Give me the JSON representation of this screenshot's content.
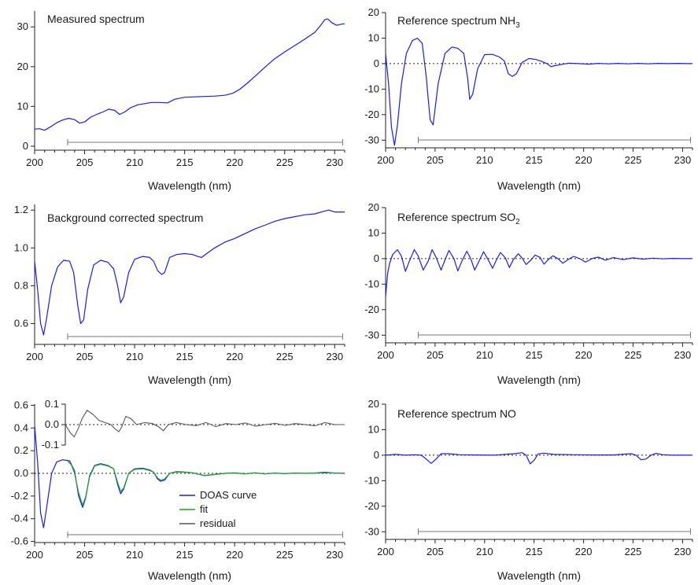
{
  "colors": {
    "doas": "#1a1aff",
    "fit": "#1aa81a",
    "residual": "#555555",
    "bracket": "#777777",
    "zero_line": "#222222",
    "axis": "#222222"
  },
  "chart_data": [
    {
      "id": "measured",
      "type": "line",
      "title": "Measured spectrum",
      "xlabel": "Wavelength (nm)",
      "xlim": [
        200,
        231
      ],
      "ylim": [
        -1,
        34
      ],
      "xticks": [
        "200",
        "205",
        "210",
        "215",
        "220",
        "225",
        "230"
      ],
      "yticks": [
        "0",
        "10",
        "20",
        "30"
      ],
      "zero_line": false,
      "fit_window": [
        203.3,
        230.8
      ],
      "series": [
        {
          "color": "doas",
          "x": [
            200,
            200.5,
            201,
            201.6,
            202.2,
            202.8,
            203.4,
            204,
            204.5,
            205,
            205.6,
            206.2,
            206.8,
            207.4,
            208,
            208.5,
            209,
            209.6,
            210.3,
            211,
            211.7,
            212.5,
            213.3,
            214,
            215,
            216,
            217,
            218,
            219,
            219.8,
            220.5,
            221.2,
            222,
            223,
            224,
            225,
            226,
            227,
            228,
            228.6,
            229,
            229.3,
            229.7,
            230.2,
            230.7,
            231
          ],
          "y": [
            4.3,
            4.4,
            4.0,
            4.9,
            5.9,
            6.6,
            7.0,
            6.7,
            5.8,
            6.1,
            7.3,
            8.0,
            8.6,
            9.3,
            9.0,
            8.0,
            8.6,
            9.7,
            10.4,
            10.7,
            11.0,
            11.0,
            10.9,
            11.8,
            12.3,
            12.4,
            12.5,
            12.6,
            12.8,
            13.3,
            14.3,
            15.7,
            17.5,
            19.8,
            22.0,
            23.7,
            25.3,
            26.9,
            28.6,
            30.4,
            31.8,
            32.0,
            31.1,
            30.4,
            30.7,
            30.8
          ]
        }
      ]
    },
    {
      "id": "nh3",
      "type": "line",
      "title": "Reference spectrum NH",
      "title_sub": "3",
      "xlabel": "Wavelength (nm)",
      "xlim": [
        200,
        231
      ],
      "ylim": [
        -33,
        20
      ],
      "xticks": [
        "200",
        "205",
        "210",
        "215",
        "220",
        "225",
        "230"
      ],
      "yticks": [
        "-30",
        "-20",
        "-10",
        "0",
        "10",
        "20"
      ],
      "zero_line": true,
      "fit_window": [
        203.3,
        230.8
      ],
      "series": [
        {
          "color": "doas",
          "x": [
            200,
            200.3,
            200.6,
            200.9,
            201.2,
            201.6,
            202.1,
            202.7,
            203.2,
            203.7,
            204.1,
            204.5,
            204.8,
            205.3,
            206,
            206.7,
            207.3,
            207.9,
            208.3,
            208.5,
            208.8,
            209.3,
            210,
            210.8,
            211.5,
            212,
            212.4,
            212.8,
            213.2,
            213.8,
            214.5,
            215.2,
            215.8,
            216.3,
            216.7,
            217.1,
            217.7,
            218.5,
            219.5,
            220.5,
            221.5,
            222.5,
            223.5,
            224.5,
            225.5,
            226.5,
            227.5,
            228.5,
            229.5,
            230.5,
            231
          ],
          "y": [
            4,
            -8,
            -25,
            -32,
            -24,
            -8,
            4,
            9,
            10,
            8,
            -5,
            -22,
            -24,
            -8,
            4,
            6.5,
            6,
            4,
            -6,
            -14,
            -12,
            -2,
            3.5,
            3.6,
            2.6,
            1,
            -4,
            -5,
            -4,
            0.5,
            2,
            1.6,
            0.8,
            0,
            -1.2,
            -0.8,
            -0.4,
            0.2,
            0,
            -0.2,
            0.1,
            -0.1,
            0.1,
            -0.1,
            0.1,
            -0.1,
            0.1,
            0,
            0.1,
            0,
            0
          ]
        }
      ]
    },
    {
      "id": "bgcorr",
      "type": "line",
      "title": "Background corrected spectrum",
      "xlabel": "Wavelength (nm)",
      "xlim": [
        200,
        231
      ],
      "ylim": [
        0.49,
        1.23
      ],
      "xticks": [
        "200",
        "205",
        "210",
        "215",
        "220",
        "225",
        "230"
      ],
      "yticks": [
        "0.6",
        "0.8",
        "1.0",
        "1.2"
      ],
      "zero_line": false,
      "fit_window": [
        203.3,
        230.8
      ],
      "series": [
        {
          "color": "doas",
          "x": [
            200,
            200.3,
            200.6,
            200.9,
            201.2,
            201.7,
            202.3,
            202.9,
            203.5,
            203.9,
            204.3,
            204.6,
            204.9,
            205.3,
            205.9,
            206.6,
            207.3,
            207.9,
            208.3,
            208.6,
            208.9,
            209.4,
            210,
            210.8,
            211.5,
            211.9,
            212.3,
            212.7,
            213,
            213.5,
            214.2,
            215,
            215.8,
            216.3,
            216.7,
            217.2,
            218,
            219,
            220,
            221,
            222,
            223,
            224,
            225,
            226,
            227,
            228,
            229,
            229.4,
            230,
            231
          ],
          "y": [
            0.93,
            0.78,
            0.6,
            0.54,
            0.63,
            0.8,
            0.9,
            0.935,
            0.93,
            0.87,
            0.7,
            0.6,
            0.62,
            0.78,
            0.91,
            0.935,
            0.925,
            0.89,
            0.8,
            0.71,
            0.74,
            0.87,
            0.94,
            0.955,
            0.95,
            0.93,
            0.88,
            0.86,
            0.87,
            0.95,
            0.965,
            0.97,
            0.965,
            0.955,
            0.95,
            0.97,
            1.0,
            1.03,
            1.05,
            1.075,
            1.1,
            1.12,
            1.14,
            1.155,
            1.165,
            1.175,
            1.18,
            1.195,
            1.2,
            1.19,
            1.19
          ]
        }
      ]
    },
    {
      "id": "so2",
      "type": "line",
      "title": "Reference spectrum SO",
      "title_sub": "2",
      "xlabel": "Wavelength (nm)",
      "xlim": [
        200,
        231
      ],
      "ylim": [
        -33,
        20
      ],
      "xticks": [
        "200",
        "205",
        "210",
        "215",
        "220",
        "225",
        "230"
      ],
      "yticks": [
        "-30",
        "-20",
        "-10",
        "0",
        "10",
        "20"
      ],
      "zero_line": true,
      "fit_window": [
        203.3,
        230.8
      ],
      "series": [
        {
          "color": "doas",
          "x": [
            200,
            200.2,
            200.4,
            200.7,
            201.2,
            201.6,
            202,
            202.4,
            202.9,
            203.3,
            203.8,
            204.3,
            204.7,
            205.1,
            205.6,
            206,
            206.4,
            206.9,
            207.3,
            207.7,
            208.2,
            208.6,
            209,
            209.5,
            209.9,
            210.3,
            210.8,
            211.2,
            211.6,
            212.1,
            212.5,
            212.9,
            213.4,
            213.8,
            214.2,
            214.7,
            215.1,
            215.6,
            216,
            216.4,
            216.9,
            217.4,
            217.9,
            218.5,
            219,
            219.6,
            220.2,
            220.9,
            221.5,
            222.2,
            223,
            224,
            225,
            226,
            227,
            228,
            229,
            230,
            231
          ],
          "y": [
            -15,
            -6,
            -2,
            1.5,
            3.5,
            1,
            -5,
            -1,
            3.5,
            1,
            -4.5,
            -1,
            3.5,
            0.5,
            -4.5,
            -0.5,
            3.2,
            0,
            -4.8,
            -1,
            2.9,
            0,
            -4.5,
            -0.5,
            2.7,
            0,
            -3.8,
            -0.5,
            2.4,
            0.3,
            -3.5,
            -0.4,
            1.9,
            0.2,
            -2.3,
            -0.5,
            1.4,
            0.5,
            -2.2,
            -0.5,
            1.1,
            0,
            -1.8,
            -0.2,
            0.9,
            0,
            -1.4,
            0.1,
            0.6,
            -0.6,
            0.4,
            -0.4,
            0.3,
            -0.2,
            0.2,
            -0.1,
            0.1,
            0,
            0
          ]
        }
      ]
    },
    {
      "id": "fit",
      "type": "line",
      "xlabel": "Wavelength (nm)",
      "xlim": [
        200,
        231
      ],
      "ylim": [
        -0.61,
        0.61
      ],
      "xticks": [
        "200",
        "205",
        "210",
        "215",
        "220",
        "225",
        "230"
      ],
      "yticks": [
        "-0.6",
        "-0.4",
        "-0.2",
        "0.0",
        "0.2",
        "0.4",
        "0.6"
      ],
      "zero_line": true,
      "fit_window": [
        203.3,
        230.8
      ],
      "legend": {
        "position": "lower-center",
        "items": [
          {
            "label": "DOAS curve",
            "color": "doas"
          },
          {
            "label": "fit",
            "color": "fit"
          },
          {
            "label": "residual",
            "color": "residual"
          }
        ]
      },
      "inset": {
        "xlim": [
          202.8,
          231
        ],
        "ylim": [
          -0.1,
          0.1
        ],
        "yticks": [
          "0.1",
          "0.0",
          "-0.1"
        ],
        "series": [
          {
            "name": "residual",
            "color": "residual",
            "x": [
              202.8,
              203.3,
              203.7,
              204.1,
              204.5,
              205,
              205.6,
              206.2,
              206.8,
              207.4,
              207.8,
              208.2,
              208.5,
              208.9,
              209.4,
              210,
              210.8,
              211.6,
              212.2,
              212.7,
              213.2,
              214,
              215,
              216,
              217,
              218,
              219,
              220,
              221,
              222,
              223,
              224,
              225,
              226,
              227,
              228,
              229,
              230,
              231
            ],
            "y": [
              0,
              -0.04,
              -0.06,
              -0.02,
              0.03,
              0.07,
              0.05,
              0.02,
              0.01,
              0,
              -0.02,
              -0.035,
              -0.01,
              0.04,
              0.03,
              0,
              0.01,
              0.005,
              -0.01,
              -0.03,
              0,
              0.01,
              0,
              -0.005,
              0.01,
              -0.01,
              0.005,
              0,
              0.008,
              -0.008,
              0,
              0.006,
              -0.004,
              0.005,
              0,
              -0.006,
              0.01,
              0,
              0
            ]
          }
        ]
      },
      "series": [
        {
          "name": "DOAS curve",
          "color": "doas",
          "x": [
            200,
            200.3,
            200.6,
            200.9,
            201.2,
            201.7,
            202.2,
            202.8,
            203.5,
            204,
            204.4,
            204.8,
            205.1,
            205.5,
            206,
            206.6,
            207.3,
            207.9,
            208.3,
            208.6,
            208.9,
            209.4,
            210,
            210.8,
            211.5,
            211.9,
            212.3,
            212.6,
            213,
            213.5,
            214.2,
            215,
            215.8,
            216.5,
            217,
            218,
            219,
            220,
            221,
            222,
            223,
            224,
            225,
            226,
            227,
            228,
            229,
            230,
            231
          ],
          "y": [
            0.42,
            0.1,
            -0.35,
            -0.48,
            -0.3,
            0,
            0.1,
            0.12,
            0.11,
            0.02,
            -0.2,
            -0.3,
            -0.22,
            -0.02,
            0.07,
            0.085,
            0.07,
            0.04,
            -0.1,
            -0.18,
            -0.14,
            0.0,
            0.04,
            0.045,
            0.03,
            0.01,
            -0.05,
            -0.07,
            -0.06,
            0.0,
            0.015,
            0.012,
            0.005,
            -0.01,
            -0.02,
            -0.01,
            0,
            0.005,
            -0.005,
            0.005,
            -0.005,
            0.003,
            -0.003,
            0.003,
            0,
            0.003,
            0.01,
            0.003,
            0
          ]
        },
        {
          "name": "fit",
          "color": "fit",
          "x": [
            203.3,
            203.7,
            204,
            204.4,
            204.8,
            205.1,
            205.5,
            206,
            206.6,
            207.3,
            207.9,
            208.3,
            208.6,
            208.9,
            209.4,
            210,
            210.8,
            211.5,
            211.9,
            212.3,
            212.6,
            213,
            213.5,
            214.2,
            215,
            215.8,
            216.5,
            217,
            218,
            219,
            220,
            221,
            222,
            223,
            224,
            225,
            226,
            227,
            228,
            229,
            230,
            230.8
          ],
          "y": [
            0.11,
            0.07,
            0.0,
            -0.17,
            -0.28,
            -0.21,
            -0.03,
            0.065,
            0.08,
            0.065,
            0.04,
            -0.08,
            -0.16,
            -0.13,
            0.0,
            0.035,
            0.04,
            0.025,
            0.01,
            -0.04,
            -0.06,
            -0.05,
            0.0,
            0.012,
            0.01,
            0.004,
            -0.01,
            -0.018,
            -0.01,
            0,
            0.003,
            -0.004,
            0.004,
            -0.004,
            0.002,
            -0.002,
            0.002,
            0,
            0.002,
            0.005,
            0.002,
            0
          ]
        }
      ]
    },
    {
      "id": "no",
      "type": "line",
      "title": "Reference spectrum NO",
      "xlabel": "Wavelength (nm)",
      "xlim": [
        200,
        231
      ],
      "ylim": [
        -33,
        20
      ],
      "xticks": [
        "200",
        "205",
        "210",
        "215",
        "220",
        "225",
        "230"
      ],
      "yticks": [
        "-30",
        "-20",
        "-10",
        "0",
        "10",
        "20"
      ],
      "zero_line": true,
      "fit_window": [
        203.3,
        230.8
      ],
      "series": [
        {
          "color": "doas",
          "x": [
            200,
            201,
            202,
            203,
            203.6,
            204.1,
            204.6,
            205.1,
            205.6,
            206.3,
            207.5,
            209,
            211,
            213,
            213.8,
            214.2,
            214.6,
            215,
            215.4,
            216,
            217,
            219,
            221,
            223,
            224.8,
            225.3,
            225.8,
            226.3,
            226.8,
            227.3,
            228,
            229,
            230,
            231
          ],
          "y": [
            0,
            0.3,
            0,
            0.2,
            0,
            -1.5,
            -3.2,
            -1.5,
            0.6,
            0.6,
            0.2,
            0.1,
            0,
            0.6,
            1,
            0,
            -3.4,
            -2,
            0.5,
            0.8,
            0.3,
            0.2,
            0.1,
            0.1,
            0.6,
            0,
            -1.8,
            -1.5,
            0,
            0.7,
            0.2,
            0,
            0,
            0
          ]
        }
      ]
    }
  ]
}
